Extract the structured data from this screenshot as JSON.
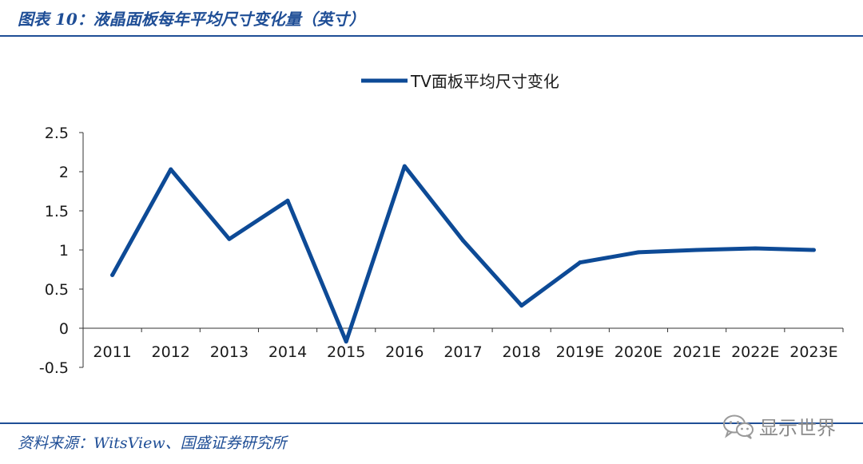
{
  "figure": {
    "title": "图表 10：液晶面板每年平均尺寸变化量（英寸）",
    "source": "资料来源：WitsView、国盛证券研究所",
    "watermark_text": "显示世界",
    "watermark_icon": "wechat-icon"
  },
  "colors": {
    "accent": "#1f4e96",
    "series": "#0d4a96",
    "axis": "#333333"
  },
  "chart_data": {
    "type": "line",
    "title": "",
    "xlabel": "",
    "ylabel": "",
    "categories": [
      "2011",
      "2012",
      "2013",
      "2014",
      "2015",
      "2016",
      "2017",
      "2018",
      "2019E",
      "2020E",
      "2021E",
      "2022E",
      "2023E"
    ],
    "series": [
      {
        "name": "TV面板平均尺寸变化",
        "values": [
          0.68,
          2.03,
          1.14,
          1.63,
          -0.17,
          2.07,
          1.12,
          0.29,
          0.84,
          0.97,
          1.0,
          1.02,
          1.0
        ]
      }
    ],
    "ylim": [
      -0.5,
      2.5
    ],
    "yticks": [
      "-0.5",
      "0",
      "0.5",
      "1",
      "1.5",
      "2",
      "2.5"
    ],
    "grid": false,
    "legend_position": "top-center"
  }
}
